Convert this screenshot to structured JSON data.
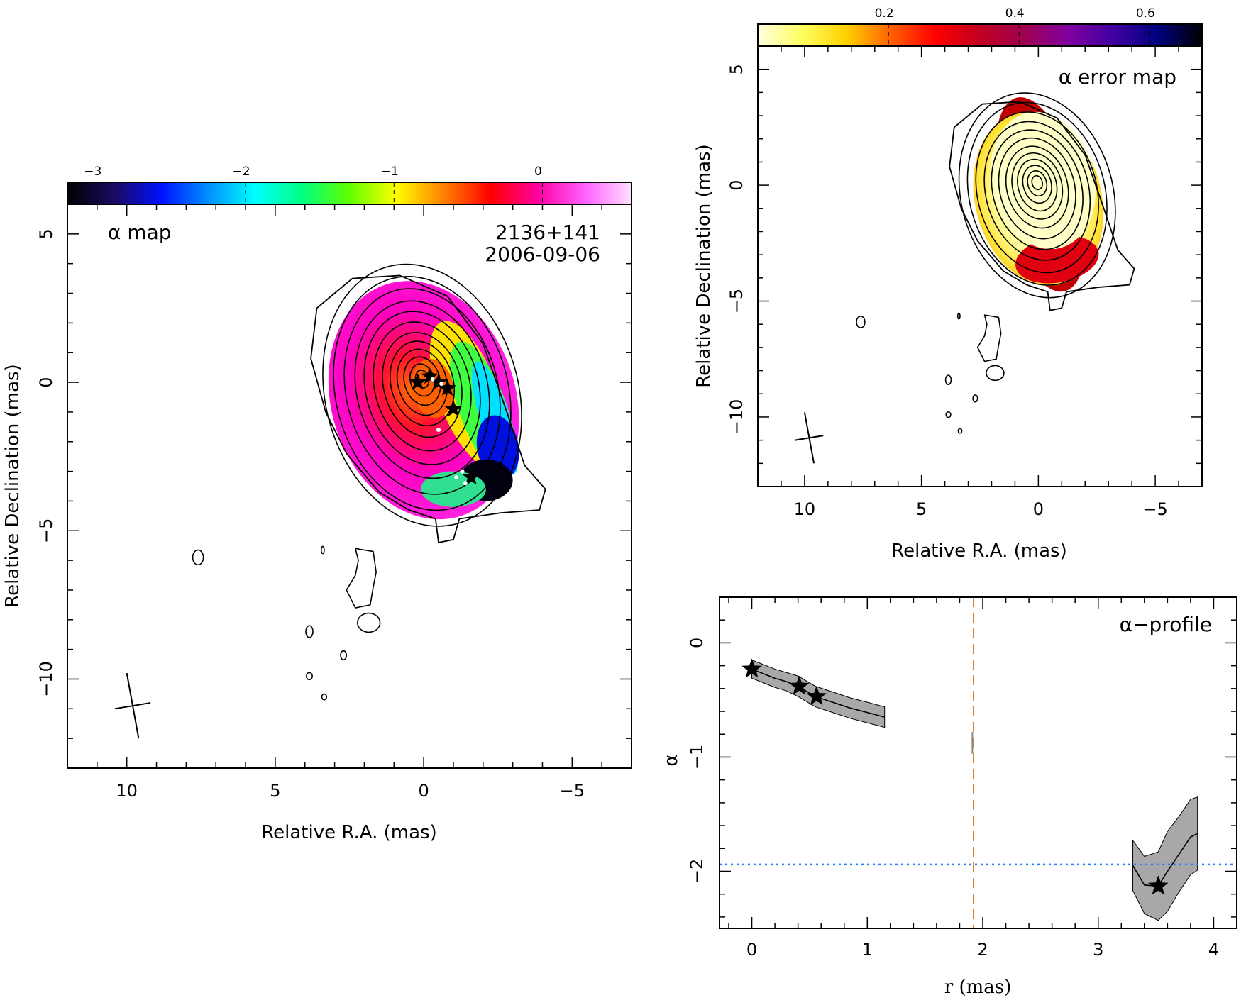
{
  "chart_data": [
    {
      "type": "heatmap",
      "panel": "alpha-map",
      "label": "α map",
      "source": "2136+141",
      "date": "2006-09-06",
      "xlabel": "Relative R.A. (mas)",
      "ylabel": "Relative Declination (mas)",
      "xlim": [
        12,
        -7
      ],
      "ylim": [
        -13,
        6
      ],
      "x_ticks": [
        10,
        5,
        0,
        -5
      ],
      "y_ticks": [
        5,
        0,
        -5,
        -10
      ],
      "x_tick_labels": [
        "10",
        "5",
        "0",
        "−5"
      ],
      "y_tick_labels": [
        "5",
        "0",
        "−5",
        "−10"
      ],
      "colorbar": {
        "range": [
          -3.2,
          0.6
        ],
        "ticks": [
          -3,
          -2,
          -1,
          0
        ],
        "tick_labels": [
          "−3",
          "−2",
          "−1",
          "0"
        ],
        "colors": [
          "#000000",
          "#1a0a60",
          "#0010ff",
          "#0090ff",
          "#00ffff",
          "#00ff80",
          "#60ff00",
          "#ffff00",
          "#ff8000",
          "#ff0000",
          "#ff00a0",
          "#ff60ff",
          "#ffe0ff"
        ]
      },
      "star_markers": [
        [
          0.2,
          0.0
        ],
        [
          -0.2,
          0.2
        ],
        [
          -0.5,
          0.0
        ],
        [
          -0.8,
          -0.2
        ],
        [
          -1.0,
          -0.9
        ],
        [
          -1.6,
          -3.2
        ]
      ],
      "beam_center": [
        9.8,
        -10.9
      ]
    },
    {
      "type": "heatmap",
      "panel": "alpha-error-map",
      "label": "α error map",
      "xlabel": "Relative R.A. (mas)",
      "ylabel": "Relative Declination (mas)",
      "xlim": [
        12,
        -7
      ],
      "ylim": [
        -13,
        6
      ],
      "x_ticks": [
        10,
        5,
        0,
        -5
      ],
      "y_ticks": [
        5,
        0,
        -5,
        -10
      ],
      "x_tick_labels": [
        "10",
        "5",
        "0",
        "−5"
      ],
      "y_tick_labels": [
        "5",
        "0",
        "−5",
        "−10"
      ],
      "colorbar": {
        "range": [
          0.0,
          0.68
        ],
        "ticks": [
          0.2,
          0.4,
          0.6
        ],
        "tick_labels": [
          "0.2",
          "0.4",
          "0.6"
        ],
        "colors": [
          "#ffffe0",
          "#ffff60",
          "#ffd000",
          "#ff6000",
          "#ff0000",
          "#c00020",
          "#a00050",
          "#8000a0",
          "#4000a0",
          "#000080",
          "#000000"
        ]
      },
      "beam_center": [
        9.8,
        -10.9
      ]
    },
    {
      "type": "line",
      "panel": "alpha-profile",
      "label": "α−profile",
      "xlabel": "r (mas)",
      "ylabel": "α",
      "xlim": [
        -0.28,
        4.2
      ],
      "ylim": [
        -2.5,
        0.4
      ],
      "x_ticks": [
        0,
        1,
        2,
        3,
        4
      ],
      "y_ticks": [
        0,
        -1,
        -2
      ],
      "x_tick_labels": [
        "0",
        "1",
        "2",
        "3",
        "4"
      ],
      "y_tick_labels": [
        "0",
        "−1",
        "−2"
      ],
      "series": [
        {
          "x": [
            0.0,
            0.1,
            0.2,
            0.3,
            0.4,
            0.55,
            0.7,
            0.85,
            1.0,
            1.15
          ],
          "y": [
            -0.23,
            -0.27,
            -0.31,
            -0.34,
            -0.38,
            -0.47,
            -0.52,
            -0.57,
            -0.61,
            -0.65
          ],
          "err": [
            0.08,
            0.08,
            0.08,
            0.08,
            0.09,
            0.09,
            0.09,
            0.09,
            0.09,
            0.09
          ]
        },
        {
          "x": [
            3.3,
            3.4,
            3.52,
            3.6,
            3.7,
            3.8,
            3.86
          ],
          "y": [
            -1.95,
            -2.12,
            -2.13,
            -2.0,
            -1.85,
            -1.7,
            -1.67
          ],
          "err": [
            0.22,
            0.25,
            0.3,
            0.35,
            0.33,
            0.33,
            0.32
          ]
        }
      ],
      "star_markers": [
        [
          0.0,
          -0.23
        ],
        [
          0.41,
          -0.38
        ],
        [
          0.56,
          -0.47
        ],
        [
          3.52,
          -2.13
        ]
      ],
      "vertical_line": {
        "x": 1.92,
        "color": "#e08030",
        "style": "dashed"
      },
      "horizontal_line": {
        "y": -1.94,
        "color": "#2080ff",
        "style": "dotted"
      },
      "grey_mark": {
        "x": 1.91,
        "y": [
          -0.78,
          -0.97
        ]
      }
    }
  ]
}
